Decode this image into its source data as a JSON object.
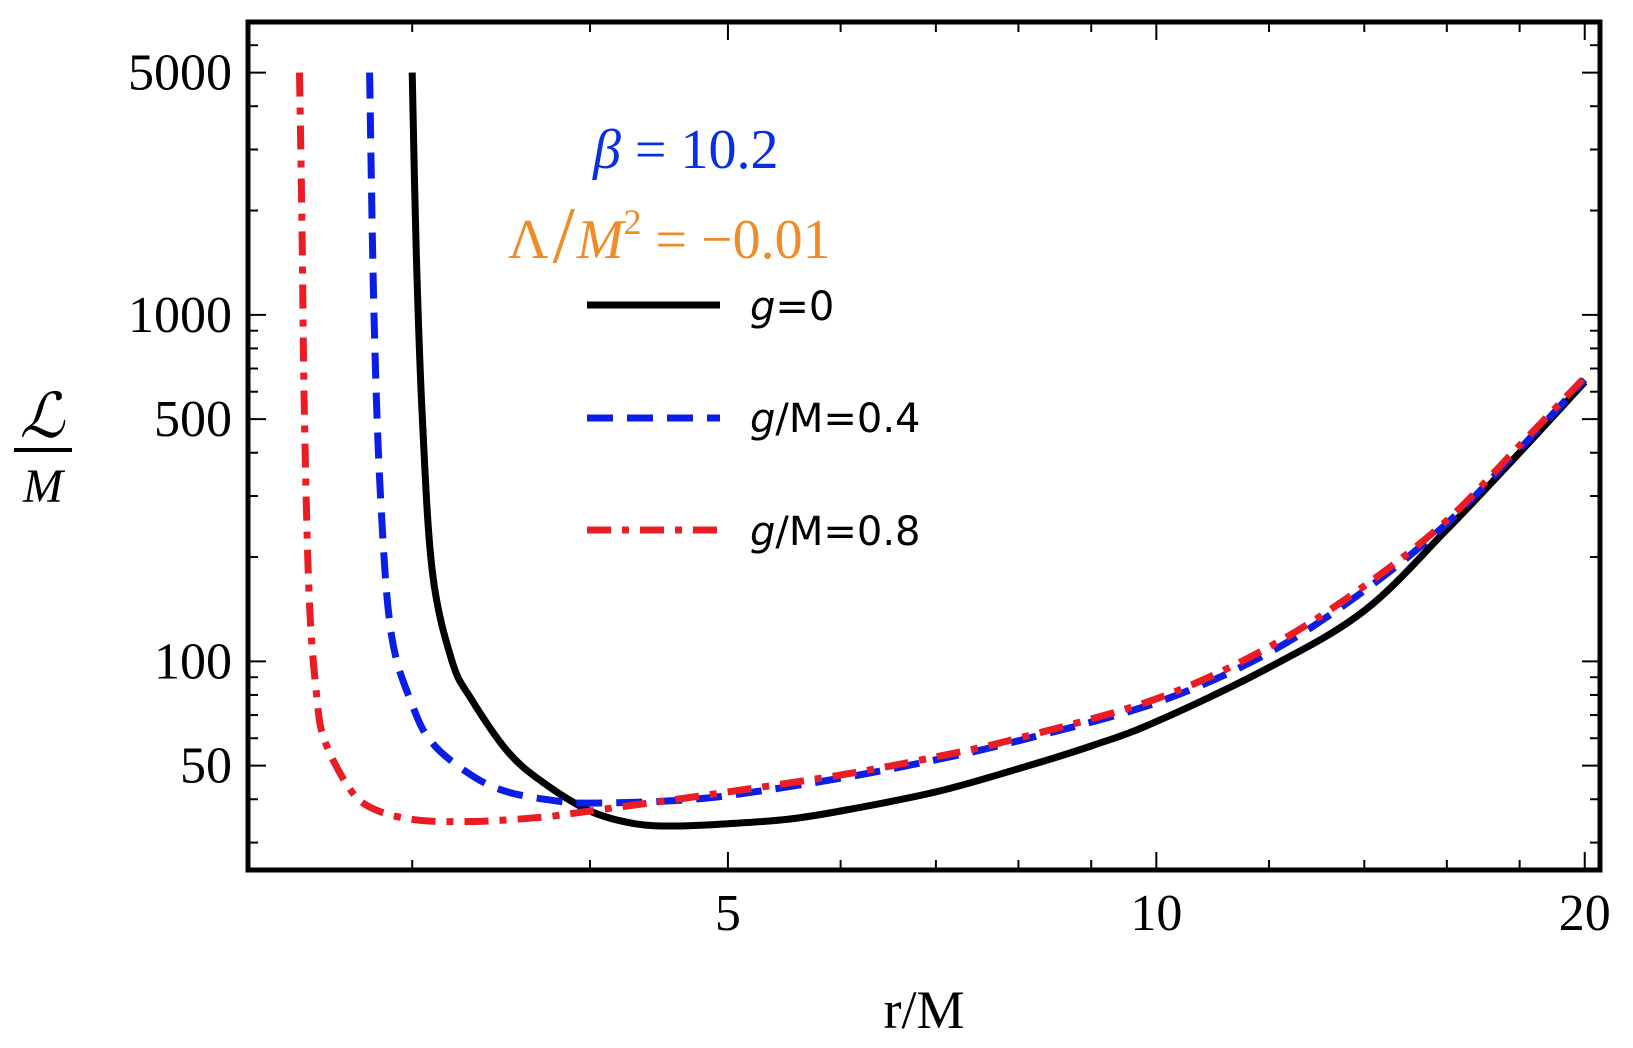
{
  "chart_data": {
    "type": "line",
    "title": "",
    "xlabel": "r/M",
    "ylabel": {
      "numerator": "ℒ",
      "denominator": "M"
    },
    "xscale": "log",
    "yscale": "log",
    "xlim": [
      2.3,
      20.5
    ],
    "ylim": [
      25,
      7000
    ],
    "xticks": [
      {
        "value": 5,
        "label": "5"
      },
      {
        "value": 10,
        "label": "10"
      },
      {
        "value": 20,
        "label": "20"
      }
    ],
    "yticks": [
      {
        "value": 50,
        "label": "50"
      },
      {
        "value": 100,
        "label": "100"
      },
      {
        "value": 500,
        "label": "500"
      },
      {
        "value": 1000,
        "label": "1000"
      },
      {
        "value": 5000,
        "label": "5000"
      }
    ],
    "annotations": {
      "beta": {
        "symbol": "β",
        "rest": " = 10.2",
        "color": "#0a2ee6"
      },
      "lambda": {
        "symbol": "Λ",
        "slash": "/",
        "m": "M",
        "exp": "2",
        "rest": " = −0.01",
        "color": "#f08c28"
      }
    },
    "legend_position": "upper-center",
    "series": [
      {
        "name": "g=0",
        "legend": {
          "g": "g",
          "rest": "=0"
        },
        "color": "#000000",
        "style": "solid",
        "x": [
          3.0,
          3.02,
          3.05,
          3.1,
          3.2,
          3.3,
          3.5,
          3.7,
          4.0,
          4.3,
          4.6,
          5.0,
          5.5,
          6.0,
          7.0,
          8.0,
          9.0,
          10.0,
          12.0,
          14.0,
          16.0,
          18.0,
          20.0
        ],
        "y": [
          5000,
          1500,
          500,
          180,
          100,
          78,
          55,
          45,
          37,
          34,
          33.5,
          34,
          35,
          37,
          42,
          49,
          57,
          67,
          96,
          140,
          240,
          400,
          640
        ]
      },
      {
        "name": "g/M=0.4",
        "legend": {
          "g": "g",
          "rest": "/M=0.4"
        },
        "color": "#0a1ee8",
        "style": "dashed",
        "x": [
          2.8,
          2.82,
          2.85,
          2.9,
          3.0,
          3.1,
          3.3,
          3.5,
          3.8,
          4.0,
          4.5,
          5.0,
          6.0,
          7.0,
          8.0,
          10.0,
          12.0,
          14.0,
          16.0,
          18.0,
          20.0
        ],
        "y": [
          5000,
          1000,
          300,
          120,
          75,
          58,
          47,
          42,
          39.5,
          39,
          39.5,
          41,
          46,
          52,
          59,
          76,
          106,
          160,
          250,
          410,
          650
        ]
      },
      {
        "name": "g/M=0.8",
        "legend": {
          "g": "g",
          "rest": "/M=0.8"
        },
        "color": "#ec1c24",
        "style": "dashdot",
        "x": [
          2.5,
          2.51,
          2.52,
          2.54,
          2.57,
          2.6,
          2.7,
          2.8,
          3.0,
          3.3,
          3.7,
          4.0,
          4.5,
          5.0,
          6.0,
          7.0,
          8.0,
          10.0,
          12.0,
          14.0,
          16.0,
          18.0,
          20.0
        ],
        "y": [
          5000,
          1800,
          500,
          150,
          80,
          60,
          44,
          38,
          35,
          34.5,
          35.5,
          37,
          39.5,
          42,
          47,
          53,
          60,
          78,
          110,
          165,
          255,
          420,
          660
        ]
      }
    ]
  }
}
